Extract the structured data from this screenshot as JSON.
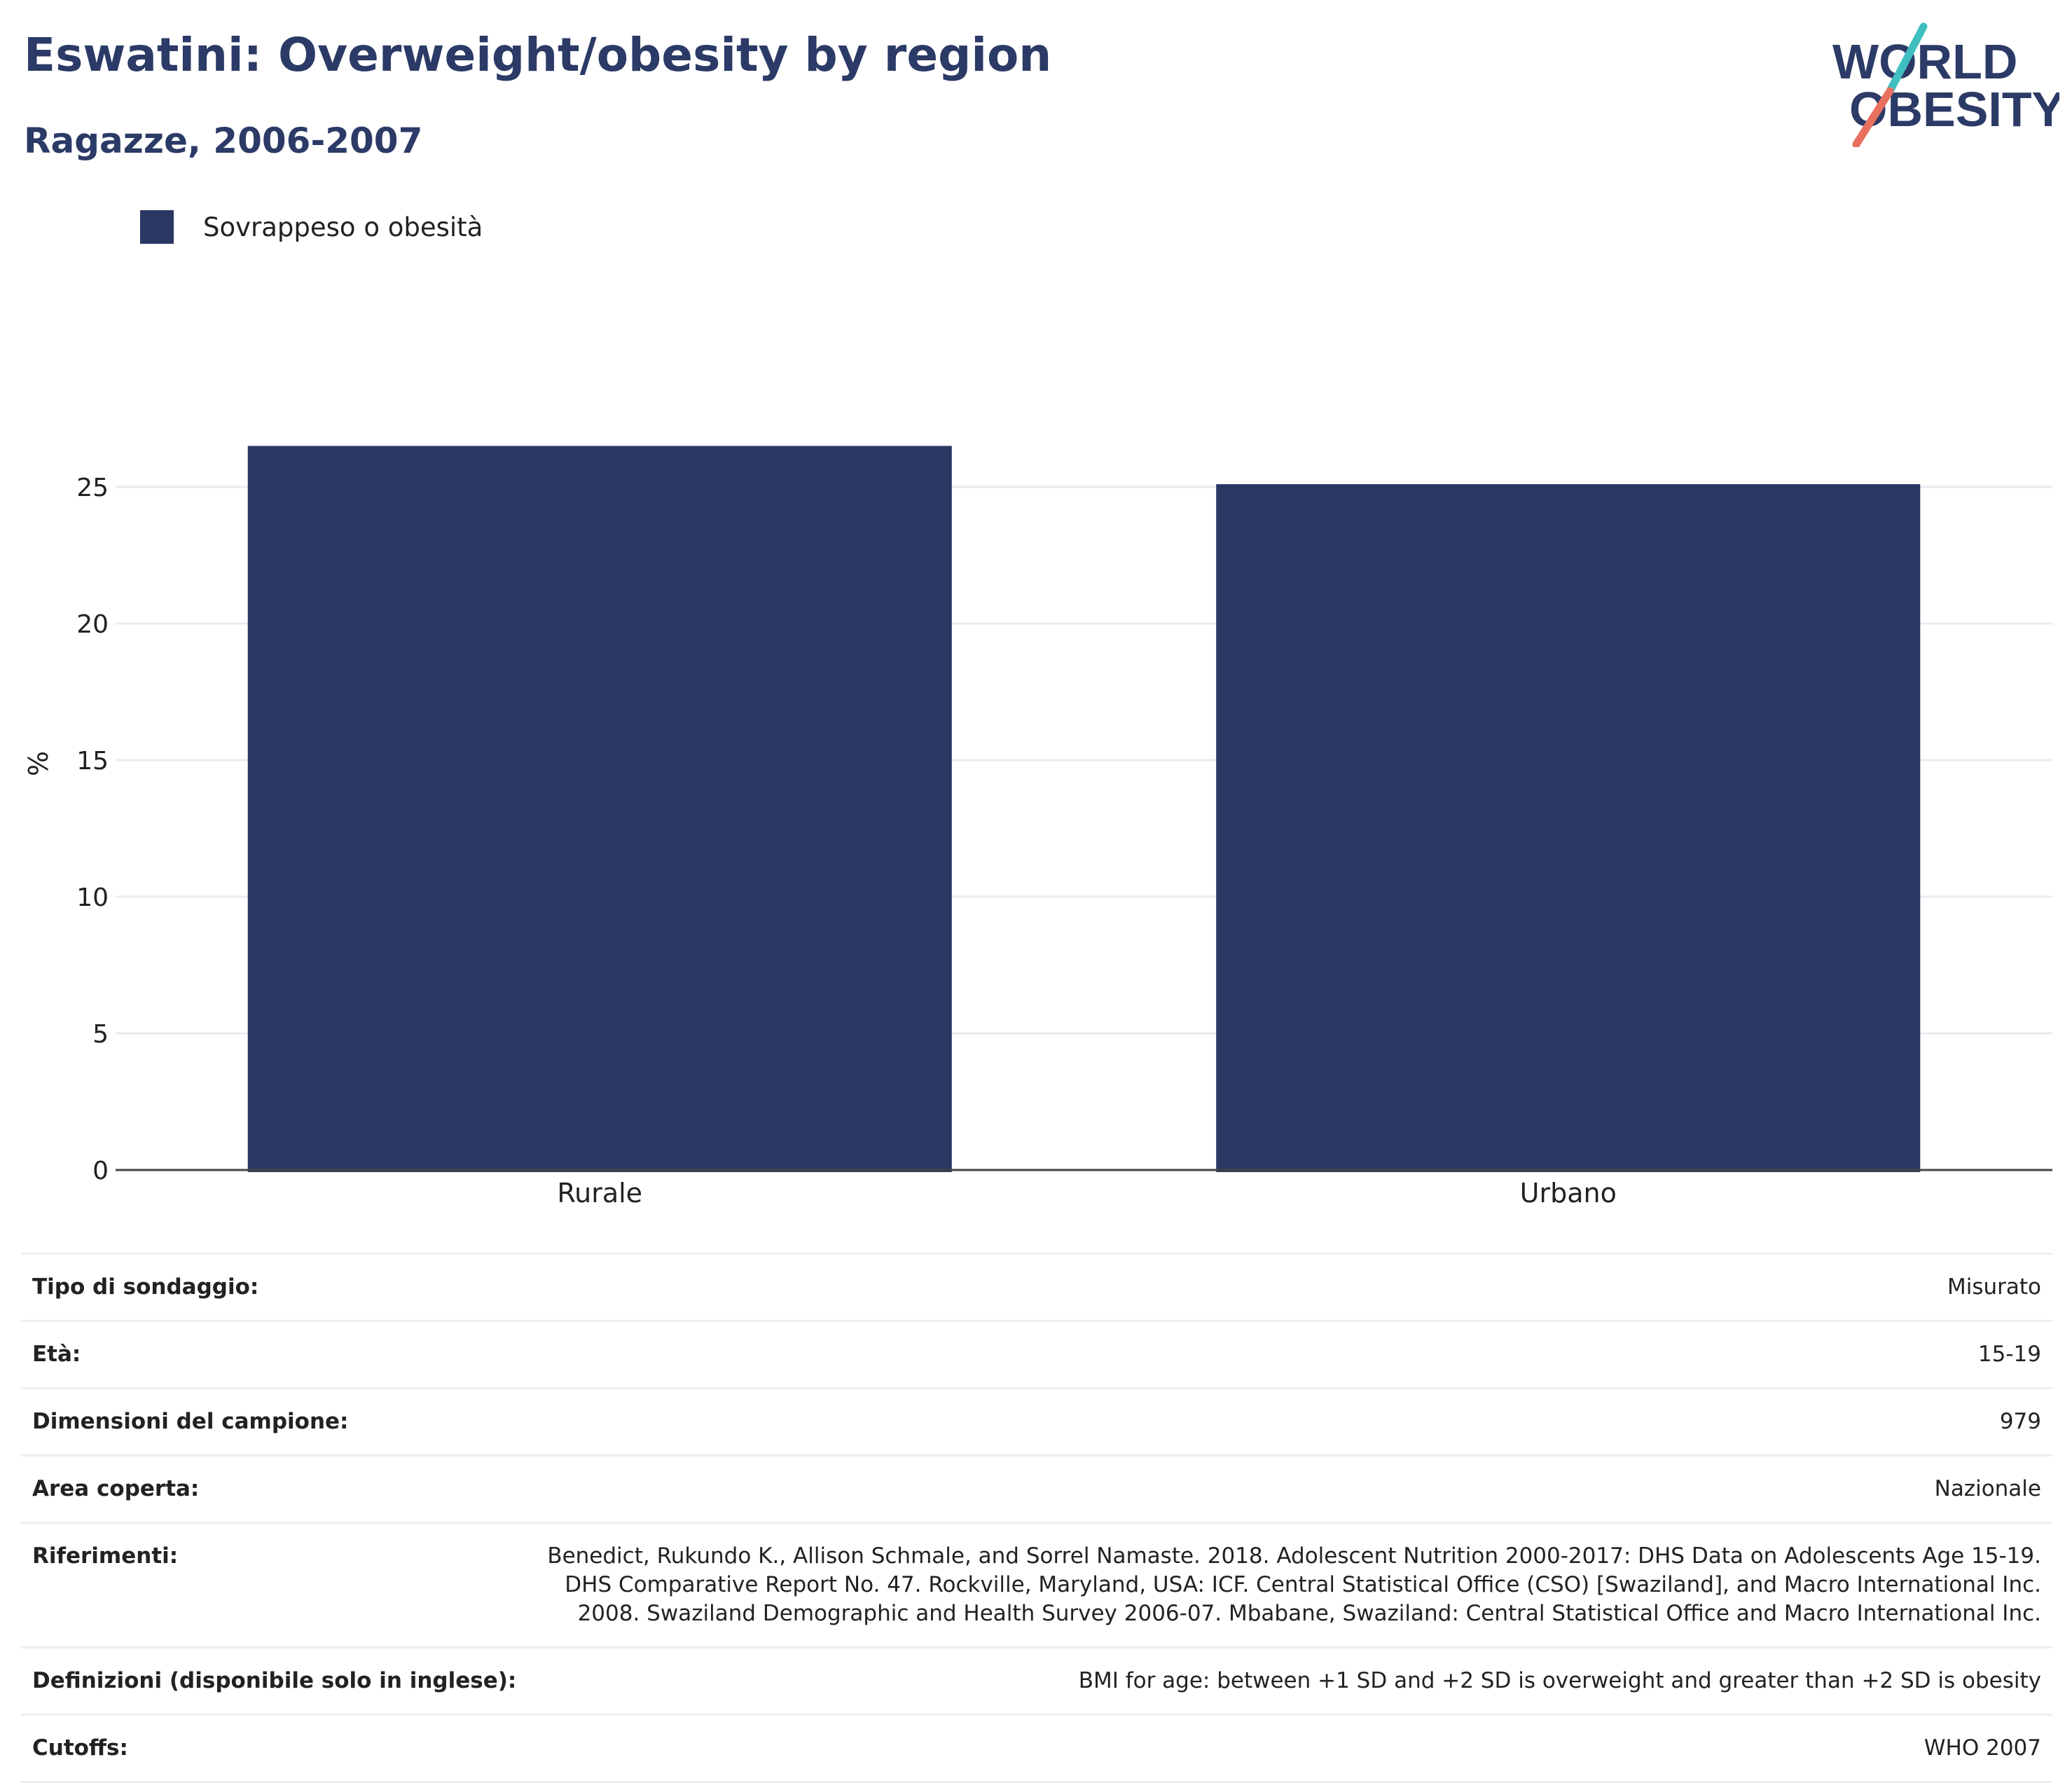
{
  "header": {
    "title": "Eswatini: Overweight/obesity by region",
    "subtitle": "Ragazze, 2006-2007"
  },
  "logo": {
    "line1": "WORLD",
    "line2": "OBESITY",
    "accent_teal": "#3fbfbf",
    "accent_coral": "#e8705e",
    "text_color": "#2b3a66"
  },
  "legend": {
    "position": "top-left",
    "items": [
      {
        "label": "Sovrappeso o obesità",
        "color": "#2b3763"
      }
    ]
  },
  "chart_data": {
    "type": "bar",
    "categories": [
      "Rurale",
      "Urbano"
    ],
    "series": [
      {
        "name": "Sovrappeso o obesità",
        "values": [
          26.5,
          25.1
        ],
        "color": "#2b3763"
      }
    ],
    "ylabel": "%",
    "xlabel": "",
    "ylim": [
      0,
      30
    ],
    "yticks": [
      0,
      5,
      10,
      15,
      20,
      25
    ],
    "grid": true
  },
  "details": [
    {
      "key": "Tipo di sondaggio:",
      "value": "Misurato"
    },
    {
      "key": "Età:",
      "value": "15-19"
    },
    {
      "key": "Dimensioni del campione:",
      "value": "979"
    },
    {
      "key": "Area coperta:",
      "value": "Nazionale"
    },
    {
      "key": "Riferimenti:",
      "value": "Benedict, Rukundo K., Allison Schmale, and Sorrel Namaste. 2018. Adolescent Nutrition 2000-2017: DHS Data on Adolescents Age 15-19. DHS Comparative Report No. 47. Rockville, Maryland, USA: ICF. Central Statistical Office (CSO) [Swaziland], and Macro International Inc. 2008. Swaziland Demographic and Health Survey 2006-07. Mbabane, Swaziland: Central Statistical Office and Macro International Inc."
    },
    {
      "key": "Definizioni (disponibile solo in inglese):",
      "value": "BMI for age: between +1 SD and +2 SD is overweight and greater than +2 SD is obesity"
    },
    {
      "key": "Cutoffs:",
      "value": "WHO 2007"
    }
  ]
}
